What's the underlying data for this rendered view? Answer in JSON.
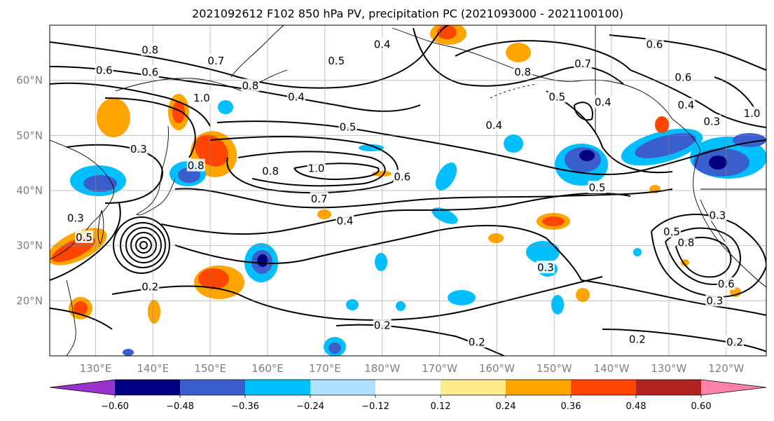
{
  "title": "2021092612 F102 850 hPa PV, precipitation PC (2021093000 - 2021100100)",
  "map": {
    "lon_range": [
      122,
      247
    ],
    "lat_range": [
      10,
      70
    ],
    "projection": "PlateCarree",
    "grid": true,
    "lat_ticks": [
      {
        "value": 20,
        "label": "20°N"
      },
      {
        "value": 30,
        "label": "30°N"
      },
      {
        "value": 40,
        "label": "40°N"
      },
      {
        "value": 50,
        "label": "50°N"
      },
      {
        "value": 60,
        "label": "60°N"
      }
    ],
    "lon_ticks": [
      {
        "value": 130,
        "label": "130°E"
      },
      {
        "value": 140,
        "label": "140°E"
      },
      {
        "value": 150,
        "label": "150°E"
      },
      {
        "value": 160,
        "label": "160°E"
      },
      {
        "value": 170,
        "label": "170°E"
      },
      {
        "value": 180,
        "label": "180°W"
      },
      {
        "value": 190,
        "label": "170°W"
      },
      {
        "value": 200,
        "label": "160°W"
      },
      {
        "value": 210,
        "label": "150°W"
      },
      {
        "value": 220,
        "label": "140°W"
      },
      {
        "value": 230,
        "label": "130°W"
      },
      {
        "value": 240,
        "label": "120°W"
      }
    ]
  },
  "colorbar": {
    "boundaries": [
      -0.72,
      -0.6,
      -0.48,
      -0.36,
      -0.24,
      -0.12,
      0.12,
      0.24,
      0.36,
      0.48,
      0.6,
      0.72
    ],
    "colors": [
      "#9932cc",
      "#000080",
      "#3a5fcd",
      "#00bfff",
      "#b0e2ff",
      "#ffffff",
      "#ffec8b",
      "#ffa500",
      "#ff4500",
      "#b22222",
      "#ff82ab"
    ],
    "tick_labels": [
      "−0.60",
      "−0.48",
      "−0.36",
      "−0.24",
      "−0.12",
      "0.12",
      "0.24",
      "0.36",
      "0.48",
      "0.60"
    ],
    "extend": "both"
  },
  "contour_labels": [
    {
      "text": "0.8",
      "lon": 139.5,
      "lat": 65.5
    },
    {
      "text": "0.6",
      "lon": 131.5,
      "lat": 61.8
    },
    {
      "text": "0.6",
      "lon": 139.5,
      "lat": 61.5
    },
    {
      "text": "0.7",
      "lon": 151.0,
      "lat": 63.5
    },
    {
      "text": "0.8",
      "lon": 157.0,
      "lat": 59.0
    },
    {
      "text": "1.0",
      "lon": 148.5,
      "lat": 56.8
    },
    {
      "text": "0.4",
      "lon": 165.0,
      "lat": 57.0
    },
    {
      "text": "0.5",
      "lon": 172.0,
      "lat": 63.5
    },
    {
      "text": "0.4",
      "lon": 180.0,
      "lat": 66.5
    },
    {
      "text": "0.5",
      "lon": 174.0,
      "lat": 51.5
    },
    {
      "text": "0.4",
      "lon": 199.5,
      "lat": 51.8
    },
    {
      "text": "0.8",
      "lon": 204.5,
      "lat": 61.5
    },
    {
      "text": "0.7",
      "lon": 215.0,
      "lat": 63.0
    },
    {
      "text": "0.5",
      "lon": 210.5,
      "lat": 57.0
    },
    {
      "text": "0.4",
      "lon": 218.5,
      "lat": 56.0
    },
    {
      "text": "0.6",
      "lon": 227.5,
      "lat": 66.5
    },
    {
      "text": "0.6",
      "lon": 232.5,
      "lat": 60.5
    },
    {
      "text": "0.4",
      "lon": 233.0,
      "lat": 55.5
    },
    {
      "text": "0.3",
      "lon": 237.5,
      "lat": 52.5
    },
    {
      "text": "1.0",
      "lon": 244.5,
      "lat": 54.0
    },
    {
      "text": "0.3",
      "lon": 137.5,
      "lat": 47.5
    },
    {
      "text": "0.8",
      "lon": 147.5,
      "lat": 44.5
    },
    {
      "text": "0.8",
      "lon": 160.5,
      "lat": 43.5
    },
    {
      "text": "1.0",
      "lon": 168.5,
      "lat": 44.0
    },
    {
      "text": "0.6",
      "lon": 183.5,
      "lat": 42.5
    },
    {
      "text": "0.7",
      "lon": 169.0,
      "lat": 38.5
    },
    {
      "text": "0.4",
      "lon": 173.5,
      "lat": 34.5
    },
    {
      "text": "0.3",
      "lon": 126.5,
      "lat": 35.0
    },
    {
      "text": "0.5",
      "lon": 128.0,
      "lat": 31.5
    },
    {
      "text": "0.2",
      "lon": 139.5,
      "lat": 22.5
    },
    {
      "text": "0.5",
      "lon": 217.5,
      "lat": 40.5
    },
    {
      "text": "0.3",
      "lon": 208.5,
      "lat": 26.0
    },
    {
      "text": "0.5",
      "lon": 230.5,
      "lat": 32.5
    },
    {
      "text": "0.8",
      "lon": 233.0,
      "lat": 30.5
    },
    {
      "text": "0.3",
      "lon": 238.5,
      "lat": 35.5
    },
    {
      "text": "0.6",
      "lon": 240.0,
      "lat": 23.0
    },
    {
      "text": "0.3",
      "lon": 238.0,
      "lat": 20.0
    },
    {
      "text": "0.2",
      "lon": 180.0,
      "lat": 15.5
    },
    {
      "text": "0.2",
      "lon": 196.5,
      "lat": 12.5
    },
    {
      "text": "0.2",
      "lon": 224.5,
      "lat": 13.0
    },
    {
      "text": "0.2",
      "lon": 241.5,
      "lat": 12.5
    }
  ]
}
